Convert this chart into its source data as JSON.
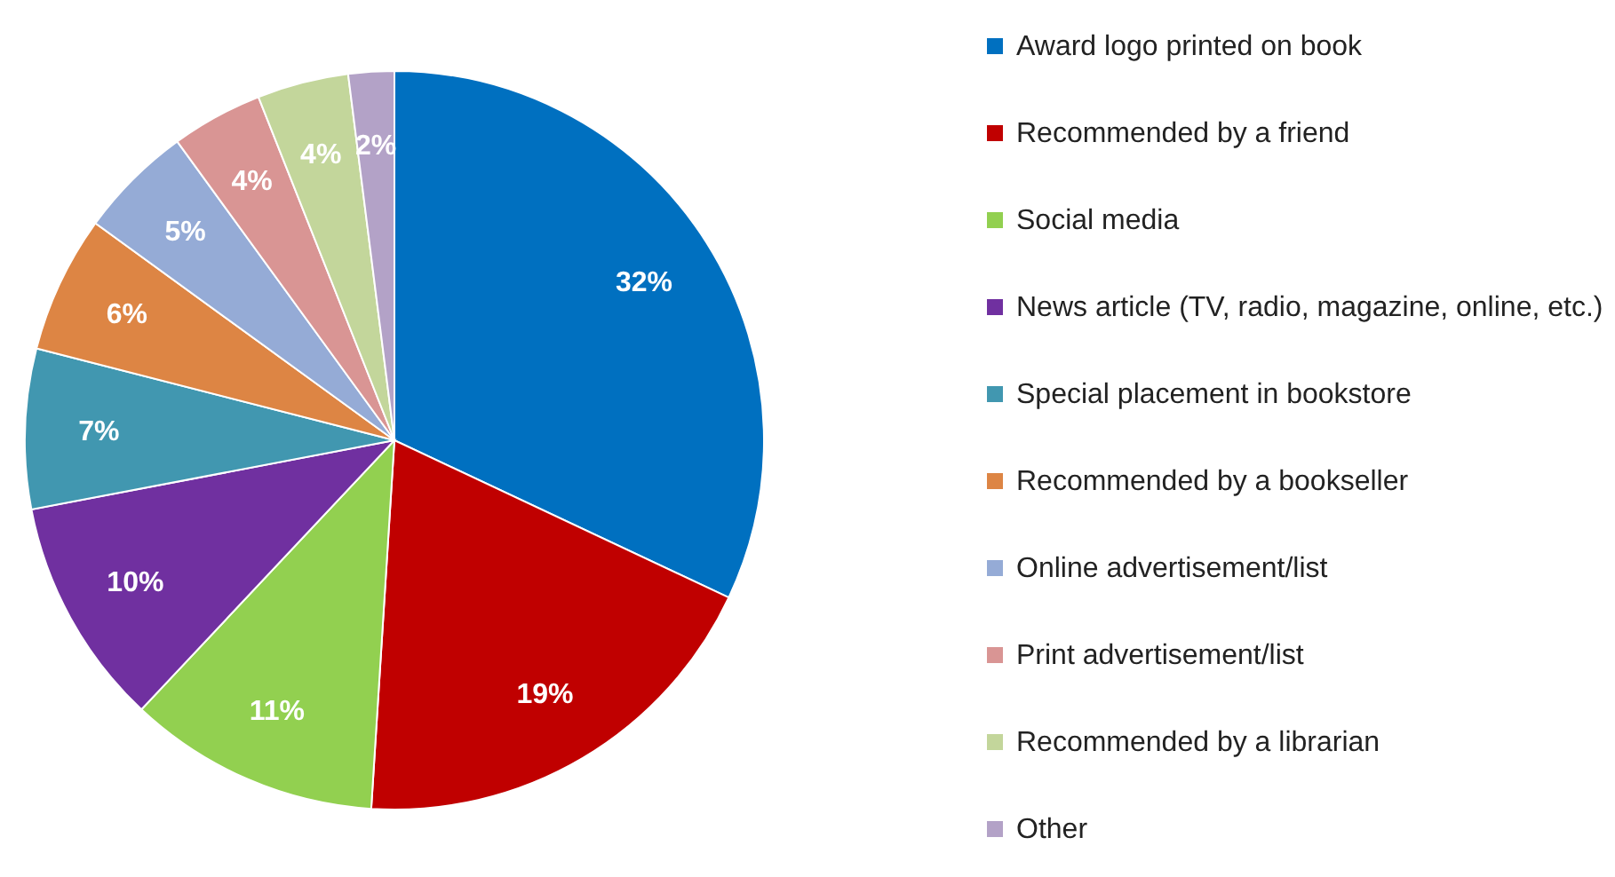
{
  "chart_data": {
    "type": "pie",
    "categories": [
      "Award logo printed on book",
      "Recommended by a friend",
      "Social media",
      "News article (TV, radio, magazine, online, etc.)",
      "Special placement in bookstore",
      "Recommended by a bookseller",
      "Online advertisement/list",
      "Print advertisement/list",
      "Recommended by a librarian",
      "Other"
    ],
    "values": [
      32,
      19,
      11,
      10,
      7,
      6,
      5,
      4,
      4,
      2
    ],
    "value_labels": [
      "32%",
      "19%",
      "11%",
      "10%",
      "7%",
      "6%",
      "5%",
      "4%",
      "4%",
      "2%"
    ],
    "colors": [
      "#0070c0",
      "#c00000",
      "#92d050",
      "#7030a0",
      "#4197b0",
      "#dd8544",
      "#95abd6",
      "#d99594",
      "#c3d69b",
      "#b3a2c7"
    ],
    "legend": "right"
  }
}
